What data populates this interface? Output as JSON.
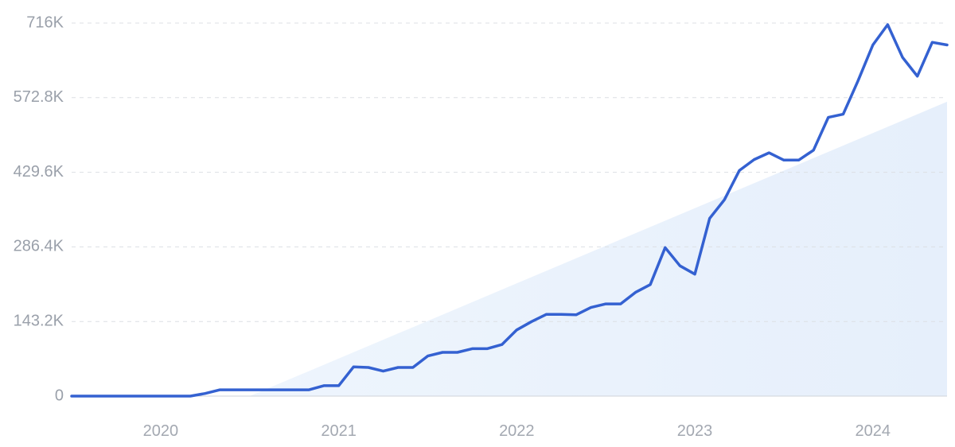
{
  "chart_data": {
    "type": "line",
    "title": "",
    "xlabel": "",
    "ylabel": "",
    "ylim": [
      0,
      716000
    ],
    "xlim": [
      "2019-07",
      "2024-06"
    ],
    "y_ticks": [
      {
        "value": 0,
        "label": "0"
      },
      {
        "value": 143200,
        "label": "143.2K"
      },
      {
        "value": 286400,
        "label": "286.4K"
      },
      {
        "value": 429600,
        "label": "429.6K"
      },
      {
        "value": 572800,
        "label": "572.8K"
      },
      {
        "value": 716000,
        "label": "716K"
      }
    ],
    "x_ticks": [
      {
        "value": "2020-01",
        "label": "2020"
      },
      {
        "value": "2021-01",
        "label": "2021"
      },
      {
        "value": "2022-01",
        "label": "2022"
      },
      {
        "value": "2023-01",
        "label": "2023"
      },
      {
        "value": "2024-01",
        "label": "2024"
      }
    ],
    "grid": "horizontal-dashed",
    "colors": {
      "line": "#3461d1",
      "trend_fill": "#e8f1fc",
      "grid": "#dcdfe4"
    },
    "trend": {
      "start": {
        "x": "2020-07",
        "y": 0
      },
      "end": {
        "x": "2024-06",
        "y": 565000
      }
    },
    "series": [
      {
        "x": [
          "2019-07",
          "2019-08",
          "2019-09",
          "2019-10",
          "2019-11",
          "2019-12",
          "2020-01",
          "2020-02",
          "2020-03",
          "2020-04",
          "2020-05",
          "2020-06",
          "2020-07",
          "2020-08",
          "2020-09",
          "2020-10",
          "2020-11",
          "2020-12",
          "2021-01",
          "2021-02",
          "2021-03",
          "2021-04",
          "2021-05",
          "2021-06",
          "2021-07",
          "2021-08",
          "2021-09",
          "2021-10",
          "2021-11",
          "2021-12",
          "2022-01",
          "2022-02",
          "2022-03",
          "2022-04",
          "2022-05",
          "2022-06",
          "2022-07",
          "2022-08",
          "2022-09",
          "2022-10",
          "2022-11",
          "2022-12",
          "2023-01",
          "2023-02",
          "2023-03",
          "2023-04",
          "2023-05",
          "2023-06",
          "2023-07",
          "2023-08",
          "2023-09",
          "2023-10",
          "2023-11",
          "2023-12",
          "2024-01",
          "2024-02",
          "2024-03",
          "2024-04",
          "2024-05",
          "2024-06"
        ],
        "values": [
          0,
          0,
          0,
          0,
          0,
          0,
          0,
          0,
          0,
          5000,
          12000,
          12000,
          12000,
          12000,
          12000,
          12000,
          12000,
          20000,
          20000,
          56000,
          55000,
          48000,
          55000,
          55000,
          77000,
          84000,
          84000,
          91000,
          91000,
          99000,
          127000,
          143000,
          157000,
          157000,
          156000,
          170000,
          177000,
          177000,
          199000,
          214000,
          285000,
          250000,
          234000,
          341000,
          377000,
          433000,
          454000,
          467000,
          453000,
          453000,
          472000,
          535000,
          541000,
          605000,
          674000,
          713000,
          650000,
          614000,
          679000,
          674000
        ]
      }
    ]
  }
}
